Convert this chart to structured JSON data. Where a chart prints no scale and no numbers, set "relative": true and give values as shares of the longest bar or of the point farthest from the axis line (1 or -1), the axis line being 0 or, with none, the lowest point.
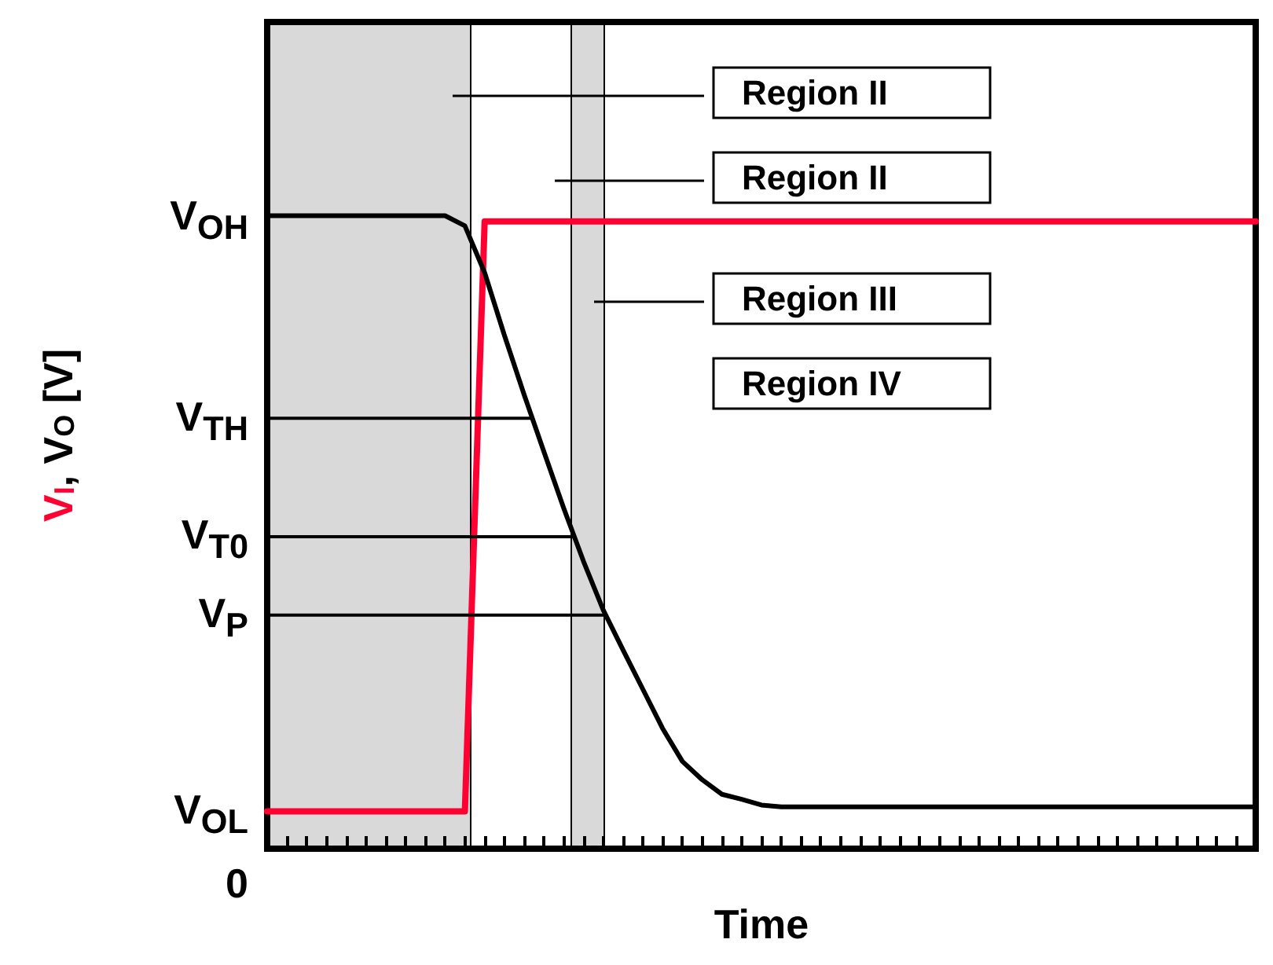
{
  "chart_data": {
    "type": "line",
    "xlabel": "Time",
    "ylabel": "V$_{I}$, V$_{O}$ [V]",
    "relative": true,
    "categories": [
      null,
      null,
      null,
      null,
      null,
      null,
      null,
      null,
      null,
      null,
      null,
      null,
      null,
      null,
      null,
      null,
      null,
      null,
      null,
      null,
      null,
      null,
      null,
      null,
      null,
      null,
      null,
      null,
      null,
      null,
      null,
      null,
      null,
      null,
      null,
      null,
      null,
      null,
      null,
      null,
      null,
      null,
      null,
      null,
      null,
      null,
      null,
      null,
      null,
      null,
      null
    ],
    "marker": "none",
    "line_style": "solid",
    "series": [
      {
        "color": "#ff0033",
        "values": [
          0.059,
          0.059,
          0.059,
          0.059,
          0.059,
          0.059,
          0.059,
          0.059,
          0.059,
          0.059,
          0.059,
          0.991,
          0.991,
          0.991,
          0.991,
          0.991,
          0.991,
          0.991,
          0.991,
          0.991,
          0.991,
          0.991,
          0.991,
          0.991,
          0.991,
          0.991,
          0.991,
          0.991,
          0.991,
          0.991,
          0.991,
          0.991,
          0.991,
          0.991,
          0.991,
          0.991,
          0.991,
          0.991,
          0.991,
          0.991,
          0.991,
          0.991,
          0.991,
          0.991,
          0.991,
          0.991,
          0.991,
          0.991,
          0.991,
          0.991,
          0.991
        ]
      },
      {
        "color": "#000000",
        "values": [
          1,
          1,
          1,
          1,
          1,
          1,
          1,
          1,
          1,
          1,
          0.984,
          0.91,
          0.811,
          0.717,
          0.627,
          0.538,
          0.454,
          0.377,
          0.314,
          0.252,
          0.19,
          0.138,
          0.109,
          0.086,
          0.078,
          0.069,
          0.066,
          0.066,
          0.066,
          0.066,
          0.066,
          0.066,
          0.066,
          0.066,
          0.066,
          0.066,
          0.066,
          0.066,
          0.066,
          0.066,
          0.066,
          0.066,
          0.066,
          0.066,
          0.066,
          0.066,
          0.066,
          0.066,
          0.066,
          0.066,
          0.066
        ]
      }
    ],
    "ref_lines": [
      {
        "axis": "y",
        "value": 0.68,
        "label": "V$_{TH}$",
        "color": "#000000"
      },
      {
        "axis": "y",
        "value": 0.493,
        "label": "V$_{T0}$",
        "color": "#000000"
      },
      {
        "axis": "y",
        "value": 0.369,
        "label": "V$_{P}$",
        "color": "#000000"
      }
    ],
    "annotations": [
      "Region II",
      "Region II",
      "Region III",
      "Region IV",
      "V$_{OH}$",
      "V$_{OL}$",
      "0"
    ]
  }
}
